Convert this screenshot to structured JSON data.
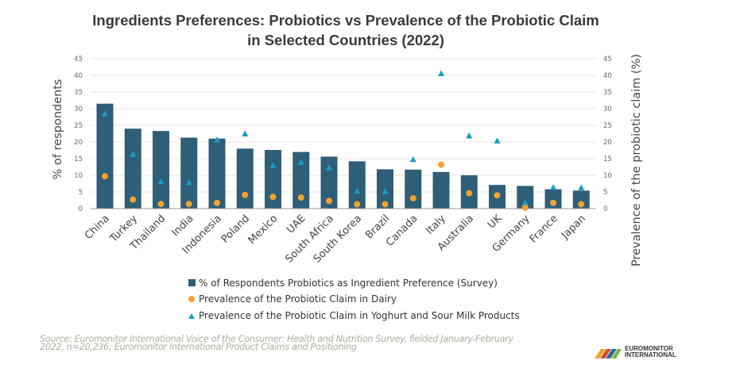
{
  "chart_data": {
    "type": "bar",
    "title": "Ingredients Preferences: Probiotics vs Prevalence of the Probiotic Claim",
    "title_line2": "in Selected Countries (2022)",
    "xlabel": "",
    "ylabel": "% of respondents",
    "y2label": "Prevalence of the probiotic claim (%)",
    "ylim": [
      0,
      45
    ],
    "y2lim": [
      0,
      45
    ],
    "yticks": [
      "0",
      "5",
      "10",
      "15",
      "20",
      "25",
      "30",
      "35",
      "40",
      "45"
    ],
    "grid": true,
    "legend_position": "bottom",
    "categories": [
      "China",
      "Turkey",
      "Thailand",
      "India",
      "Indonesia",
      "Poland",
      "Mexico",
      "UAE",
      "South Africa",
      "South Korea",
      "Brazil",
      "Canada",
      "Italy",
      "Australia",
      "UK",
      "Germany",
      "France",
      "Japan"
    ],
    "series": [
      {
        "name": "% of Respondents Probiotics as Ingredient Preference (Survey)",
        "type": "bar",
        "axis": "left",
        "color": "#2e5e78",
        "values": [
          31.5,
          24.0,
          23.3,
          21.3,
          21.0,
          18.0,
          17.6,
          17.0,
          15.6,
          14.2,
          11.8,
          11.7,
          11.0,
          10.0,
          7.1,
          6.8,
          5.8,
          5.4
        ]
      },
      {
        "name": "Prevalence of the Probiotic Claim in Dairy",
        "type": "scatter",
        "marker": "circle",
        "axis": "right",
        "color": "#f2a22e",
        "values": [
          9.7,
          2.7,
          1.4,
          1.4,
          1.7,
          4.1,
          3.5,
          3.3,
          2.3,
          1.3,
          1.3,
          3.1,
          13.2,
          4.6,
          4.0,
          0.3,
          1.7,
          1.3
        ]
      },
      {
        "name": "Prevalence of the Probiotic Claim in Yoghurt and Sour Milk Products",
        "type": "scatter",
        "marker": "triangle",
        "axis": "right",
        "color": "#1a9bc4",
        "values": [
          28.5,
          16.4,
          8.2,
          7.9,
          20.7,
          22.5,
          13.0,
          14.0,
          12.3,
          5.3,
          5.2,
          14.8,
          40.6,
          21.9,
          20.4,
          1.9,
          6.4,
          6.3
        ]
      }
    ]
  },
  "footer": {
    "source_line1": "Source: Euromonitor International Voice of the Consumer: Health and Nutrition Survey, fielded January-February",
    "source_line2": "2022, n=20,236; Euromonitor International Product Claims and Positioning",
    "logo_line1": "EUROMONITOR",
    "logo_line2": "INTERNATIONAL"
  }
}
